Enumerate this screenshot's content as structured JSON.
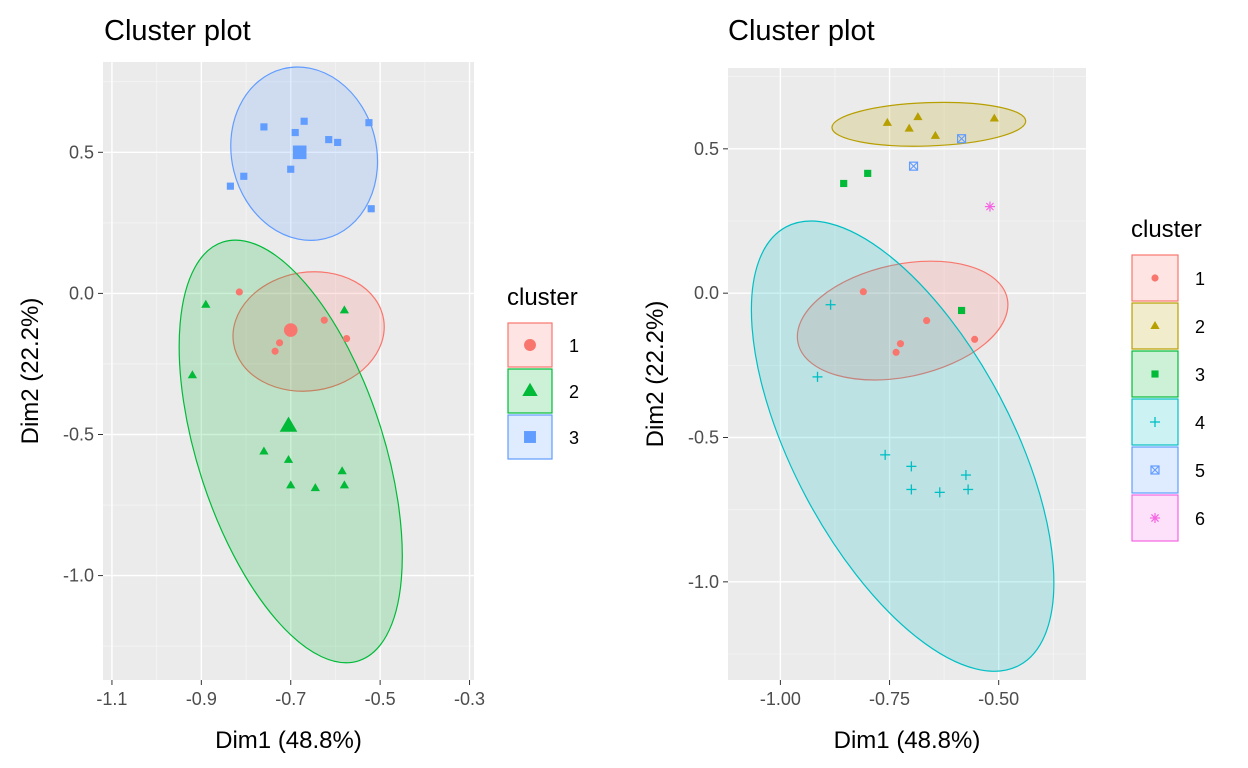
{
  "chart_data": [
    {
      "type": "scatter",
      "title": "Cluster plot",
      "xlabel": "Dim1 (48.8%)",
      "ylabel": "Dim2 (22.2%)",
      "xlim": [
        -1.12,
        -0.29
      ],
      "ylim": [
        -1.37,
        0.82
      ],
      "xticks": [
        -1.1,
        -0.9,
        -0.7,
        -0.5,
        -0.3
      ],
      "xtick_labels": [
        "-1.1",
        "-0.9",
        "-0.7",
        "-0.5",
        "-0.3"
      ],
      "yticks": [
        -1.0,
        -0.5,
        0.0,
        0.5
      ],
      "ytick_labels": [
        "-1.0",
        "-0.5",
        "0.0",
        "0.5"
      ],
      "grid": true,
      "legend": {
        "title": "cluster",
        "position": "right"
      },
      "series": [
        {
          "name": "1",
          "color": "#F8766D",
          "shape": "circle",
          "points": [
            [
              -0.815,
              0.005
            ],
            [
              -0.575,
              -0.16
            ],
            [
              -0.625,
              -0.095
            ],
            [
              -0.725,
              -0.175
            ],
            [
              -0.735,
              -0.205
            ]
          ],
          "center": [
            -0.7,
            -0.13
          ],
          "ellipse_path": [
            [
              -0.61,
              -0.08
            ],
            [
              -0.56,
              -0.11
            ],
            [
              -0.56,
              -0.15
            ]
          ]
        },
        {
          "name": "2",
          "color": "#00BA38",
          "shape": "triangle",
          "points": [
            [
              -0.89,
              -0.04
            ],
            [
              -0.92,
              -0.29
            ],
            [
              -0.58,
              -0.06
            ],
            [
              -0.76,
              -0.56
            ],
            [
              -0.705,
              -0.59
            ],
            [
              -0.7,
              -0.68
            ],
            [
              -0.645,
              -0.69
            ],
            [
              -0.585,
              -0.63
            ],
            [
              -0.58,
              -0.68
            ]
          ],
          "center": [
            -0.705,
            -0.47
          ]
        },
        {
          "name": "3",
          "color": "#619CFF",
          "shape": "square",
          "points": [
            [
              -0.76,
              0.59
            ],
            [
              -0.69,
              0.57
            ],
            [
              -0.67,
              0.61
            ],
            [
              -0.615,
              0.545
            ],
            [
              -0.595,
              0.535
            ],
            [
              -0.525,
              0.605
            ],
            [
              -0.7,
              0.44
            ],
            [
              -0.805,
              0.415
            ],
            [
              -0.835,
              0.38
            ],
            [
              -0.52,
              0.3
            ]
          ],
          "center": [
            -0.68,
            0.5
          ]
        }
      ],
      "ellipses": [
        {
          "series": "1",
          "cx": -0.66,
          "cy": -0.135,
          "rx": 0.17,
          "ry": 0.21,
          "angle_deg": -9
        },
        {
          "series": "2",
          "cx": -0.7,
          "cy": -0.56,
          "rx": 0.208,
          "ry": 0.78,
          "angle_deg": -18
        },
        {
          "series": "3",
          "cx": -0.67,
          "cy": 0.495,
          "rx": 0.162,
          "ry": 0.31,
          "angle_deg": -14
        }
      ]
    },
    {
      "type": "scatter",
      "title": "Cluster plot",
      "xlabel": "Dim1 (48.8%)",
      "ylabel": "Dim2 (22.2%)",
      "xlim": [
        -1.12,
        -0.3
      ],
      "ylim": [
        -1.34,
        0.78
      ],
      "xticks": [
        -1.0,
        -0.75,
        -0.5
      ],
      "xtick_labels": [
        "-1.00",
        "-0.75",
        "-0.50"
      ],
      "yticks": [
        -1.0,
        -0.5,
        0.0,
        0.5
      ],
      "ytick_labels": [
        "-1.0",
        "-0.5",
        "0.0",
        "0.5"
      ],
      "grid": true,
      "legend": {
        "title": "cluster",
        "position": "right"
      },
      "series": [
        {
          "name": "1",
          "color": "#F8766D",
          "shape": "circle",
          "points": [
            [
              -0.81,
              0.005
            ],
            [
              -0.665,
              -0.095
            ],
            [
              -0.555,
              -0.16
            ],
            [
              -0.725,
              -0.175
            ],
            [
              -0.735,
              -0.205
            ]
          ]
        },
        {
          "name": "2",
          "color": "#B79F00",
          "shape": "triangle",
          "points": [
            [
              -0.755,
              0.59
            ],
            [
              -0.685,
              0.61
            ],
            [
              -0.705,
              0.57
            ],
            [
              -0.645,
              0.545
            ],
            [
              -0.51,
              0.605
            ]
          ]
        },
        {
          "name": "3",
          "color": "#00BA38",
          "shape": "square",
          "points": [
            [
              -0.855,
              0.38
            ],
            [
              -0.8,
              0.415
            ],
            [
              -0.585,
              -0.06
            ]
          ]
        },
        {
          "name": "4",
          "color": "#00BFC4",
          "shape": "plus",
          "points": [
            [
              -0.885,
              -0.04
            ],
            [
              -0.915,
              -0.29
            ],
            [
              -0.76,
              -0.56
            ],
            [
              -0.7,
              -0.6
            ],
            [
              -0.7,
              -0.68
            ],
            [
              -0.635,
              -0.69
            ],
            [
              -0.575,
              -0.63
            ],
            [
              -0.57,
              -0.68
            ]
          ]
        },
        {
          "name": "5",
          "color": "#619CFF",
          "shape": "boxx",
          "points": [
            [
              -0.585,
              0.535
            ],
            [
              -0.695,
              0.44
            ]
          ]
        },
        {
          "name": "6",
          "color": "#F564E3",
          "shape": "star",
          "points": [
            [
              -0.52,
              0.3
            ]
          ]
        }
      ],
      "ellipses": [
        {
          "series": "2",
          "cx": -0.66,
          "cy": 0.585,
          "rx": 0.222,
          "ry": 0.075,
          "angle_deg": -2
        },
        {
          "series": "1",
          "cx": -0.72,
          "cy": -0.095,
          "rx": 0.245,
          "ry": 0.195,
          "angle_deg": -12
        },
        {
          "series": "4",
          "cx": -0.72,
          "cy": -0.53,
          "rx": 0.25,
          "ry": 0.86,
          "angle_deg": -28
        }
      ]
    }
  ]
}
